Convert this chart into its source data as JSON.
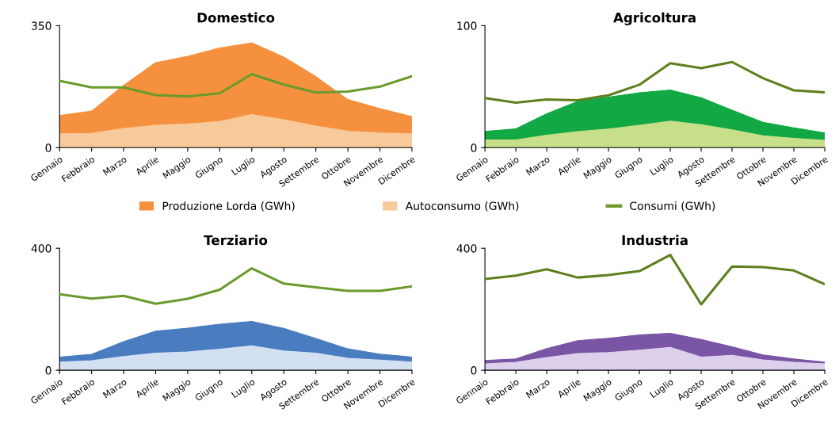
{
  "chart_data": [
    {
      "type": "area",
      "title": "Domestico",
      "categories": [
        "Gennaio",
        "Febbraio",
        "Marzo",
        "Aprile",
        "Maggio",
        "Giugno",
        "Luglio",
        "Agosto",
        "Settembre",
        "Ottobre",
        "Novembre",
        "Dicembre"
      ],
      "ylim": [
        0,
        350
      ],
      "yticks": [
        0,
        350
      ],
      "legend": "bottom",
      "series": [
        {
          "name": "Produzione Lorda (GWh)",
          "color": "#f5913e",
          "values": [
            92,
            105,
            179,
            244,
            262,
            286,
            301,
            260,
            204,
            138,
            112,
            89
          ]
        },
        {
          "name": "Autoconsumo (GWh)",
          "color": "#f8c99a",
          "values": [
            40,
            41,
            55,
            64,
            68,
            75,
            95,
            80,
            62,
            47,
            42,
            40
          ]
        },
        {
          "name": "Consumi (GWh)",
          "type": "line",
          "color": "#6a9a2c",
          "values": [
            192,
            173,
            173,
            151,
            147,
            156,
            211,
            181,
            158,
            161,
            175,
            205
          ]
        }
      ]
    },
    {
      "type": "area",
      "title": "Agricoltura",
      "categories": [
        "Gennaio",
        "Febbraio",
        "Marzo",
        "Aprile",
        "Maggio",
        "Giugno",
        "Luglio",
        "Agosto",
        "Settembre",
        "Ottobre",
        "Novembre",
        "Dicembre"
      ],
      "ylim": [
        0,
        100
      ],
      "yticks": [
        0,
        100
      ],
      "series": [
        {
          "color": "#12a843",
          "values": [
            13.3,
            15.5,
            27.8,
            37.9,
            41.5,
            45,
            47.2,
            41,
            30.8,
            20.8,
            16.3,
            12.1
          ]
        },
        {
          "color": "#c8df8a",
          "values": [
            6.3,
            6.3,
            10.3,
            13.1,
            15.3,
            18.3,
            21.8,
            18.8,
            14.7,
            9.7,
            7.7,
            6
          ]
        },
        {
          "type": "line",
          "color": "#5e7f1e",
          "values": [
            40.7,
            36.9,
            39.5,
            38.9,
            42.9,
            51.6,
            69.2,
            65.1,
            70.2,
            57,
            47,
            45.4
          ]
        }
      ]
    },
    {
      "type": "area",
      "title": "Terziario",
      "categories": [
        "Gennaio",
        "Febbraio",
        "Marzo",
        "Aprile",
        "Maggio",
        "Giugno",
        "Luglio",
        "Agosto",
        "Settembre",
        "Ottobre",
        "Novembre",
        "Dicembre"
      ],
      "ylim": [
        0,
        400
      ],
      "yticks": [
        0,
        400
      ],
      "series": [
        {
          "color": "#4a7cc0",
          "values": [
            43,
            52,
            94,
            128,
            138,
            151,
            160,
            137,
            104,
            70,
            53,
            43
          ]
        },
        {
          "color": "#d3e0f2",
          "values": [
            27,
            31,
            45,
            56,
            60,
            69,
            80,
            63,
            56,
            39,
            33,
            27
          ]
        },
        {
          "type": "line",
          "color": "#6a9a2c",
          "values": [
            249,
            235,
            244,
            218,
            234,
            264,
            334,
            284,
            272,
            260,
            260,
            275
          ]
        }
      ]
    },
    {
      "type": "area",
      "title": "Industria",
      "categories": [
        "Gennaio",
        "Febbraio",
        "Marzo",
        "Aprile",
        "Maggio",
        "Giugno",
        "Luglio",
        "Agosto",
        "Settembre",
        "Ottobre",
        "Novembre",
        "Dicembre"
      ],
      "ylim": [
        0,
        400
      ],
      "yticks": [
        0,
        400
      ],
      "series": [
        {
          "color": "#7a55a5",
          "values": [
            32,
            37,
            71,
            97,
            105,
            116,
            121,
            101,
            77,
            50,
            37,
            27
          ]
        },
        {
          "color": "#ddd0ec",
          "values": [
            21,
            26,
            42,
            55,
            58,
            66,
            75,
            43,
            49,
            34,
            26,
            21
          ]
        },
        {
          "type": "line",
          "color": "#5e7f1e",
          "values": [
            299,
            310,
            331,
            304,
            312,
            325,
            378,
            216,
            340,
            338,
            327,
            282
          ]
        }
      ]
    }
  ]
}
